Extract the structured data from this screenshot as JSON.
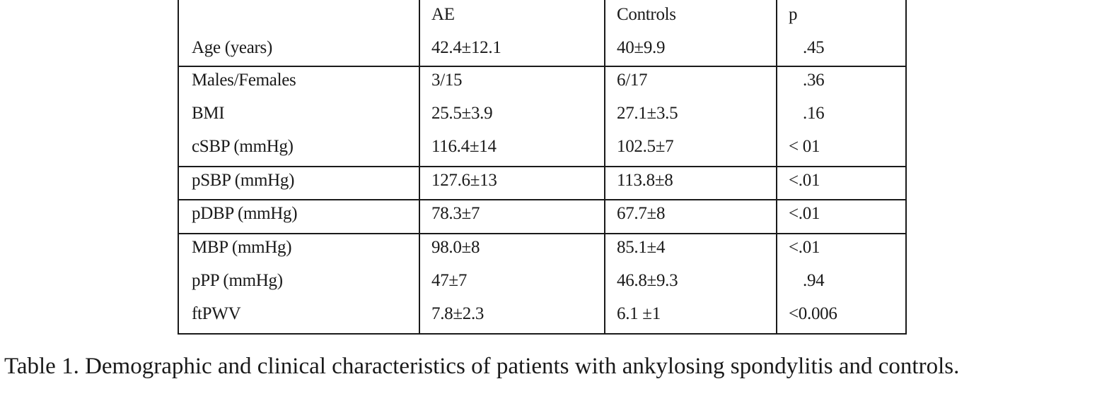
{
  "table": {
    "headers": [
      "",
      "AE",
      "Controls",
      "p"
    ],
    "rows": [
      {
        "label": "Age (years)",
        "ae": "42.4±12.1",
        "controls": "40±9.9",
        "p": ".45"
      },
      {
        "label": "Males/Females",
        "ae": "3/15",
        "controls": "6/17",
        "p": ".36"
      },
      {
        "label": "BMI",
        "ae": "25.5±3.9",
        "controls": "27.1±3.5",
        "p": ".16"
      },
      {
        "label": "cSBP (mmHg)",
        "ae": "116.4±14",
        "controls": "102.5±7",
        "p": "< 01"
      },
      {
        "label": "pSBP (mmHg)",
        "ae": "127.6±13",
        "controls": "113.8±8",
        "p": "<.01"
      },
      {
        "label": "pDBP (mmHg)",
        "ae": "78.3±7",
        "controls": "67.7±8",
        "p": "<.01"
      },
      {
        "label": "MBP (mmHg)",
        "ae": "98.0±8",
        "controls": "85.1±4",
        "p": "<.01"
      },
      {
        "label": "pPP (mmHg)",
        "ae": "47±7",
        "controls": "46.8±9.3",
        "p": ".94"
      },
      {
        "label": "ftPWV",
        "ae": "7.8±2.3",
        "controls": "6.1 ±1",
        "p": "<0.006"
      }
    ]
  },
  "caption": "Table 1. Demographic and clinical characteristics of patients with ankylosing spondylitis and controls."
}
